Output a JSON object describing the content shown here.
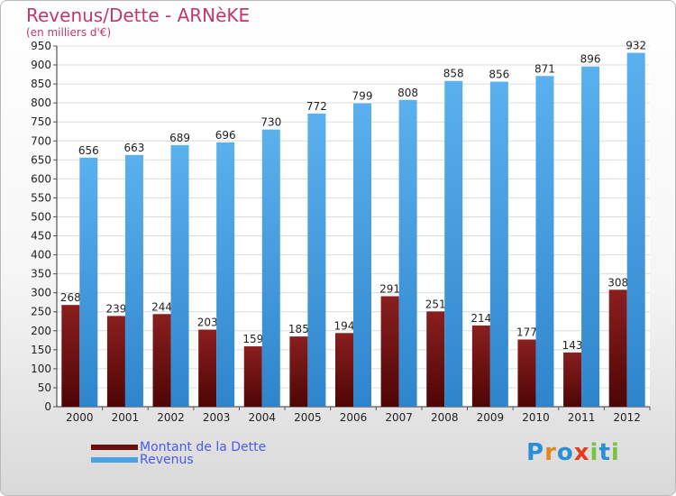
{
  "header": {
    "title": "Revenus/Dette - ARNèKE",
    "subtitle": "(en milliers d'€)"
  },
  "colors": {
    "dette": "#6b0e0e",
    "revenus": "#4ca3e4",
    "title": "#c0386e",
    "legend_text": "#4a59f0"
  },
  "legend": {
    "items": [
      {
        "label": "Montant de la Dette",
        "color": "#6b0e0e"
      },
      {
        "label": "Revenus",
        "color": "#4ca3e4"
      }
    ]
  },
  "logo": {
    "letters": [
      "P",
      "r",
      "o",
      "x",
      "i",
      "t",
      "i"
    ],
    "colors": [
      "#2a8fd6",
      "#e0871c",
      "#2a8fd6",
      "#e63b1e",
      "#7cc142",
      "#2a8fd6",
      "#7cc142"
    ]
  },
  "chart_data": {
    "type": "bar",
    "categories": [
      "2000",
      "2001",
      "2002",
      "2003",
      "2004",
      "2005",
      "2006",
      "2007",
      "2008",
      "2009",
      "2010",
      "2011",
      "2012"
    ],
    "series": [
      {
        "name": "Montant de la Dette",
        "values": [
          268,
          239,
          244,
          203,
          159,
          185,
          194,
          291,
          251,
          214,
          177,
          143,
          308
        ]
      },
      {
        "name": "Revenus",
        "values": [
          656,
          663,
          689,
          696,
          730,
          772,
          799,
          808,
          858,
          856,
          871,
          896,
          932
        ]
      }
    ],
    "ylim": [
      0,
      950
    ],
    "ytick_step": 50,
    "grid": true
  }
}
